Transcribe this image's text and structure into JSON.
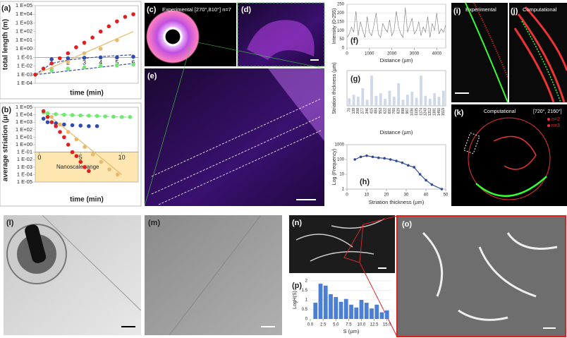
{
  "chart_data": [
    {
      "type": "line",
      "panel": "(a)",
      "ylabel": "total length (m)",
      "xlabel": "time (min)",
      "log_y": true,
      "xaxis_at": 0.1,
      "frame": true,
      "xlim": [
        0,
        6.3
      ],
      "xticks": [
        1,
        2,
        3,
        4,
        5,
        6
      ],
      "ylim": [
        0.0001,
        100000
      ],
      "yticks": [
        {
          "value": 100000,
          "label": "1 E+05"
        },
        {
          "value": 10000,
          "label": "1 E+04"
        },
        {
          "value": 1000,
          "label": "1 E+03"
        },
        {
          "value": 100,
          "label": "1 E+02"
        },
        {
          "value": 10,
          "label": "1 E+01"
        },
        {
          "value": 1,
          "label": "1 E+00"
        },
        {
          "value": 0.1,
          "label": "1 E-01"
        },
        {
          "value": 0.01,
          "label": "1 E-02"
        },
        {
          "value": 0.001,
          "label": "1 E-03"
        },
        {
          "value": 0.0001,
          "label": "1 E-04"
        }
      ],
      "series": [
        {
          "color": "#e8b96a",
          "line": "solid",
          "marker": false,
          "x": [
            0,
            6
          ],
          "values": [
            0.001,
            100
          ]
        },
        {
          "color": "#3b4fa0",
          "line": "dashed",
          "marker": false,
          "x": [
            0,
            1,
            2,
            3,
            4,
            5,
            6
          ],
          "values": [
            0.001,
            0.02,
            0.05,
            0.08,
            0.12,
            0.16,
            0.2
          ]
        },
        {
          "color": "#3b4fa0",
          "line": "dashed",
          "marker": false,
          "x": [
            0,
            6
          ],
          "values": [
            0.001,
            0.02
          ]
        },
        {
          "color": "#e8b96a",
          "line": "none",
          "marker": true,
          "x": [
            0,
            1,
            2,
            3,
            4,
            5
          ],
          "values": [
            0.001,
            0.005,
            0.03,
            0.3,
            1,
            10
          ]
        },
        {
          "color": "#e02020",
          "line": "none",
          "marker": true,
          "x": [
            0,
            0.5,
            1,
            1.5,
            2,
            2.5,
            3,
            3.5,
            4,
            4.5,
            5,
            5.5,
            6
          ],
          "values": [
            0.001,
            0.005,
            0.02,
            0.08,
            0.3,
            1.5,
            5,
            20,
            100,
            400,
            1500,
            5000,
            10000
          ]
        },
        {
          "color": "#2e4bb0",
          "line": "none",
          "marker": true,
          "x": [
            1,
            2,
            3,
            4,
            5,
            6
          ],
          "values": [
            0.06,
            0.08,
            0.09,
            0.1,
            0.1,
            0.12
          ]
        },
        {
          "color": "#6ee86e",
          "line": "none",
          "marker": true,
          "x": [
            1,
            2,
            3,
            4,
            5,
            6
          ],
          "values": [
            0.003,
            0.005,
            0.007,
            0.01,
            0.012,
            0.015
          ]
        }
      ]
    },
    {
      "type": "line",
      "panel": "(b)",
      "ylabel": "average striation (µm)",
      "xlabel": "time (min)",
      "log_y": true,
      "xaxis_at": 0.1,
      "frame": true,
      "band": {
        "from": 1e-05,
        "to": 0.1,
        "color": "#fde6b0",
        "label": "Nanoscale range"
      },
      "xlim": [
        -0.5,
        12
      ],
      "xticks": [
        0,
        5,
        10
      ],
      "ylim": [
        1e-05,
        100000
      ],
      "yticks": [
        {
          "value": 100000,
          "label": "1 E+05"
        },
        {
          "value": 10000,
          "label": "1 E+04"
        },
        {
          "value": 1000,
          "label": "1 E+03"
        },
        {
          "value": 100,
          "label": "1 E+02"
        },
        {
          "value": 10,
          "label": "1 E+01"
        },
        {
          "value": 1,
          "label": "1 E+00"
        },
        {
          "value": 0.1,
          "label": "1 E-01"
        },
        {
          "value": 0.01,
          "label": "1 E-02"
        },
        {
          "value": 0.001,
          "label": "1 E-03"
        },
        {
          "value": 0.0001,
          "label": "1 E-04"
        },
        {
          "value": 1e-05,
          "label": "1 E-05"
        }
      ],
      "series": [
        {
          "color": "#e8b96a",
          "line": "solid",
          "marker": false,
          "x": [
            0.5,
            10
          ],
          "values": [
            30000,
            0.0001
          ]
        },
        {
          "color": "#6ee86e",
          "line": "dashed",
          "marker": true,
          "x": [
            0.5,
            1,
            2,
            3,
            4,
            5,
            6,
            7,
            8,
            9,
            10,
            11
          ],
          "values": [
            20000,
            15000,
            12000,
            10000,
            9000,
            8000,
            7500,
            7000,
            6000,
            5500,
            5000,
            5000
          ]
        },
        {
          "color": "#2e4bb0",
          "line": "none",
          "marker": true,
          "x": [
            0.5,
            1,
            2,
            3,
            4,
            5,
            6,
            7
          ],
          "values": [
            3000,
            1000,
            700,
            500,
            400,
            350,
            300,
            300
          ]
        },
        {
          "color": "#e8b96a",
          "line": "none",
          "marker": true,
          "x": [
            0.5,
            1.5,
            2.5,
            3.5,
            4.5,
            5.5,
            6.5,
            7.5,
            8.5,
            9.5
          ],
          "values": [
            30000,
            5000,
            500,
            50,
            5,
            0.5,
            0.05,
            0.005,
            0.0005,
            0.0001
          ]
        },
        {
          "color": "#e02020",
          "line": "none",
          "marker": true,
          "x": [
            0.5,
            1,
            1.5,
            2,
            2.5,
            3,
            3.5,
            4,
            4.5,
            5,
            5.5,
            6
          ],
          "values": [
            30000,
            5000,
            1000,
            300,
            50,
            10,
            1,
            0.1,
            0.03,
            0.005,
            0.001,
            0.0003
          ]
        }
      ]
    },
    {
      "type": "line",
      "panel": "(f)",
      "ylabel": "Intensity (0-255)",
      "xlabel": "Distance (µm)",
      "grid": true,
      "frame": true,
      "xlim": [
        0,
        4400
      ],
      "xticks": [
        0,
        1000,
        2000,
        3000,
        4000
      ],
      "ylim": [
        0,
        250
      ],
      "yticks": [
        0,
        50,
        100,
        150,
        200,
        250
      ],
      "series": [
        {
          "color": "#777",
          "line": "solid",
          "marker": false,
          "x": [
            0,
            100,
            200,
            300,
            400,
            500,
            600,
            700,
            800,
            900,
            1000,
            1100,
            1200,
            1300,
            1400,
            1500,
            1600,
            1700,
            1800,
            1900,
            2000,
            2100,
            2200,
            2300,
            2400,
            2500,
            2600,
            2700,
            2800,
            2900,
            3000,
            3100,
            3200,
            3300,
            3400,
            3500,
            3600,
            3700,
            3800,
            3900,
            4000,
            4100,
            4200,
            4300,
            4400
          ],
          "values": [
            60,
            80,
            120,
            90,
            210,
            70,
            150,
            100,
            60,
            180,
            90,
            70,
            130,
            200,
            80,
            60,
            140,
            110,
            90,
            160,
            70,
            100,
            210,
            120,
            80,
            60,
            230,
            90,
            130,
            170,
            80,
            100,
            150,
            70,
            120,
            90,
            180,
            60,
            140,
            100,
            200,
            80,
            110,
            90,
            130
          ]
        }
      ]
    },
    {
      "type": "bar",
      "panel": "(g)",
      "ylabel": "Striation thickness (µm)",
      "xlabel": "Distance (µm)",
      "frame": true,
      "color": "#cfd8ea",
      "ylim": [
        0,
        70
      ],
      "categories": [
        "70",
        "139",
        "208",
        "277",
        "346",
        "415",
        "484",
        "553",
        "622",
        "691",
        "760",
        "829",
        "898",
        "967",
        "1036",
        "1105",
        "1174",
        "1243",
        "1312",
        "1381",
        "1450",
        "1519"
      ],
      "values": [
        15,
        22,
        18,
        35,
        12,
        60,
        20,
        25,
        14,
        30,
        18,
        45,
        12,
        22,
        28,
        16,
        60,
        20,
        14,
        25,
        18,
        30
      ]
    },
    {
      "type": "line",
      "panel": "(h)",
      "ylabel": "Log (Frequency)",
      "xlabel": "Striation thickness (µm)",
      "log_y": true,
      "frame": true,
      "xlim": [
        0,
        50
      ],
      "xticks": [
        0,
        10,
        20,
        30,
        40,
        50
      ],
      "ylim": [
        1,
        1000
      ],
      "yticks": [
        1,
        10,
        100,
        1000
      ],
      "series": [
        {
          "color": "#2e4b9a",
          "line": "solid",
          "marker": true,
          "x": [
            4,
            7,
            10,
            13,
            16,
            19,
            22,
            25,
            28,
            31,
            34,
            37,
            40,
            43,
            48
          ],
          "values": [
            100,
            150,
            180,
            150,
            130,
            120,
            100,
            80,
            60,
            40,
            30,
            10,
            4,
            2,
            1
          ]
        }
      ]
    },
    {
      "type": "bar",
      "panel": "(p)",
      "ylabel": "LogH(S)",
      "xlabel": "S (µm)",
      "color": "#4a7fd4",
      "grid": true,
      "xlim": [
        0,
        16
      ],
      "xticks": [
        {
          "value": 0,
          "label": "0.0"
        },
        {
          "value": 2.5,
          "label": "2.5"
        },
        {
          "value": 5,
          "label": "5.0"
        },
        {
          "value": 7.5,
          "label": "7.5"
        },
        {
          "value": 10,
          "label": "10.0"
        },
        {
          "value": 12.5,
          "label": "12.5"
        },
        {
          "value": 15,
          "label": "15.0"
        }
      ],
      "ylim": [
        0,
        2
      ],
      "yticks": [
        0,
        0.5,
        1,
        1.5,
        2
      ],
      "x": [
        1,
        2,
        3,
        4,
        5,
        6,
        7,
        8,
        9,
        10,
        11,
        12,
        13,
        14,
        15
      ],
      "values": [
        0.85,
        1.85,
        1.75,
        1.3,
        1.15,
        0.9,
        1.05,
        0.75,
        0.6,
        1.0,
        0.85,
        0.55,
        0.75,
        0.35,
        0.45
      ]
    }
  ],
  "images": [
    {
      "label": "(c)",
      "caption": "Experimental [270°,810°] n=7"
    },
    {
      "label": "(d)"
    },
    {
      "label": "(e)"
    },
    {
      "label": "(i)",
      "caption": "Experimental"
    },
    {
      "label": "(j)",
      "caption": "Computational"
    },
    {
      "label": "(k)",
      "caption": "Computational",
      "range": "[720°, 2160°]",
      "legend": [
        "n=2",
        "n=3"
      ]
    },
    {
      "label": "(l)"
    },
    {
      "label": "(m)"
    },
    {
      "label": "(n)"
    },
    {
      "label": "(o)"
    }
  ]
}
